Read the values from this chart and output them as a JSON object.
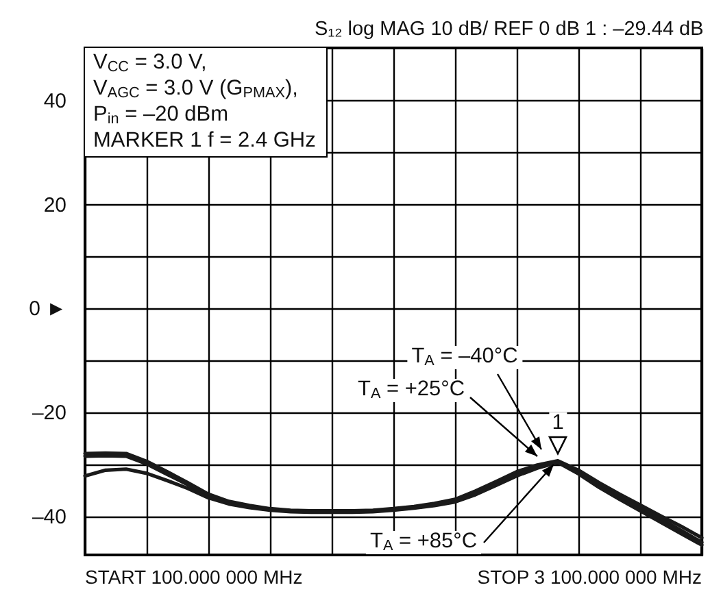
{
  "chart_data": {
    "type": "line",
    "title": "S₁₂ log   MAG   10 dB/    REF   0 dB    1 :  –29.44 dB",
    "categories": [
      null,
      null,
      null,
      null,
      null,
      null,
      null,
      null,
      null,
      null,
      null,
      null,
      null,
      null,
      null,
      null,
      null,
      null,
      null,
      null,
      null,
      null,
      null,
      null,
      null,
      null,
      null,
      null,
      null,
      null,
      null
    ],
    "series": [
      {
        "color": "#1a1a1a",
        "values": [
          -28.0,
          -27.9,
          -28.0,
          -29.5,
          -31.5,
          -33.6,
          -35.8,
          -37.2,
          -38.0,
          -38.6,
          -38.9,
          -39.0,
          -39.0,
          -39.0,
          -38.9,
          -38.6,
          -38.2,
          -37.6,
          -36.8,
          -35.2,
          -33.4,
          -31.5,
          -30.2,
          -29.4,
          -31.2,
          -33.6,
          -35.8,
          -37.9,
          -40.0,
          -42.0,
          -44.2
        ]
      },
      {
        "color": "#1a1a1a",
        "values": [
          -28.5,
          -28.4,
          -28.5,
          -30.0,
          -32.0,
          -34.0,
          -36.2,
          -37.5,
          -38.3,
          -38.8,
          -39.1,
          -39.2,
          -39.2,
          -39.2,
          -39.1,
          -38.8,
          -38.4,
          -37.9,
          -37.1,
          -35.6,
          -33.8,
          -32.0,
          -30.6,
          -29.6,
          -31.6,
          -34.1,
          -36.3,
          -38.5,
          -40.6,
          -42.8,
          -45.1
        ]
      },
      {
        "color": "#1a1a1a",
        "values": [
          -32.3,
          -31.2,
          -31.0,
          -31.8,
          -33.2,
          -34.7,
          -36.5,
          -37.7,
          -38.4,
          -38.9,
          -39.2,
          -39.3,
          -39.3,
          -39.3,
          -39.2,
          -38.9,
          -38.5,
          -38.0,
          -37.3,
          -35.9,
          -34.1,
          -32.3,
          -30.8,
          -29.7,
          -31.9,
          -34.5,
          -36.8,
          -39.0,
          -41.2,
          -43.4,
          -45.6
        ]
      }
    ],
    "ylim": [
      -47.5,
      50
    ],
    "yticks": [
      {
        "value": -40,
        "label": "–40"
      },
      {
        "value": -30,
        "label": null
      },
      {
        "value": -20,
        "label": "–20"
      },
      {
        "value": -10,
        "label": null
      },
      {
        "value": 0,
        "label": "0 ►"
      },
      {
        "value": 10,
        "label": null
      },
      20,
      {
        "value": 30,
        "label": null
      },
      40
    ],
    "grid": true,
    "line_style": "solid",
    "annotations": [
      "V$_{CC}$ = 3.0 V,",
      "V$_{AGC}$ = 3.0 V (G$_{PMAX}$),",
      "P$_{in}$ = –20 dBm",
      "MARKER 1  f = 2.4 GHz",
      "1",
      "T$_{A}$ = –40°C",
      "T$_{A}$ = +25°C",
      "T$_{A}$ = +85°C",
      "START  100.000 000 MHz",
      "STOP  3 100.000 000 MHz"
    ]
  }
}
